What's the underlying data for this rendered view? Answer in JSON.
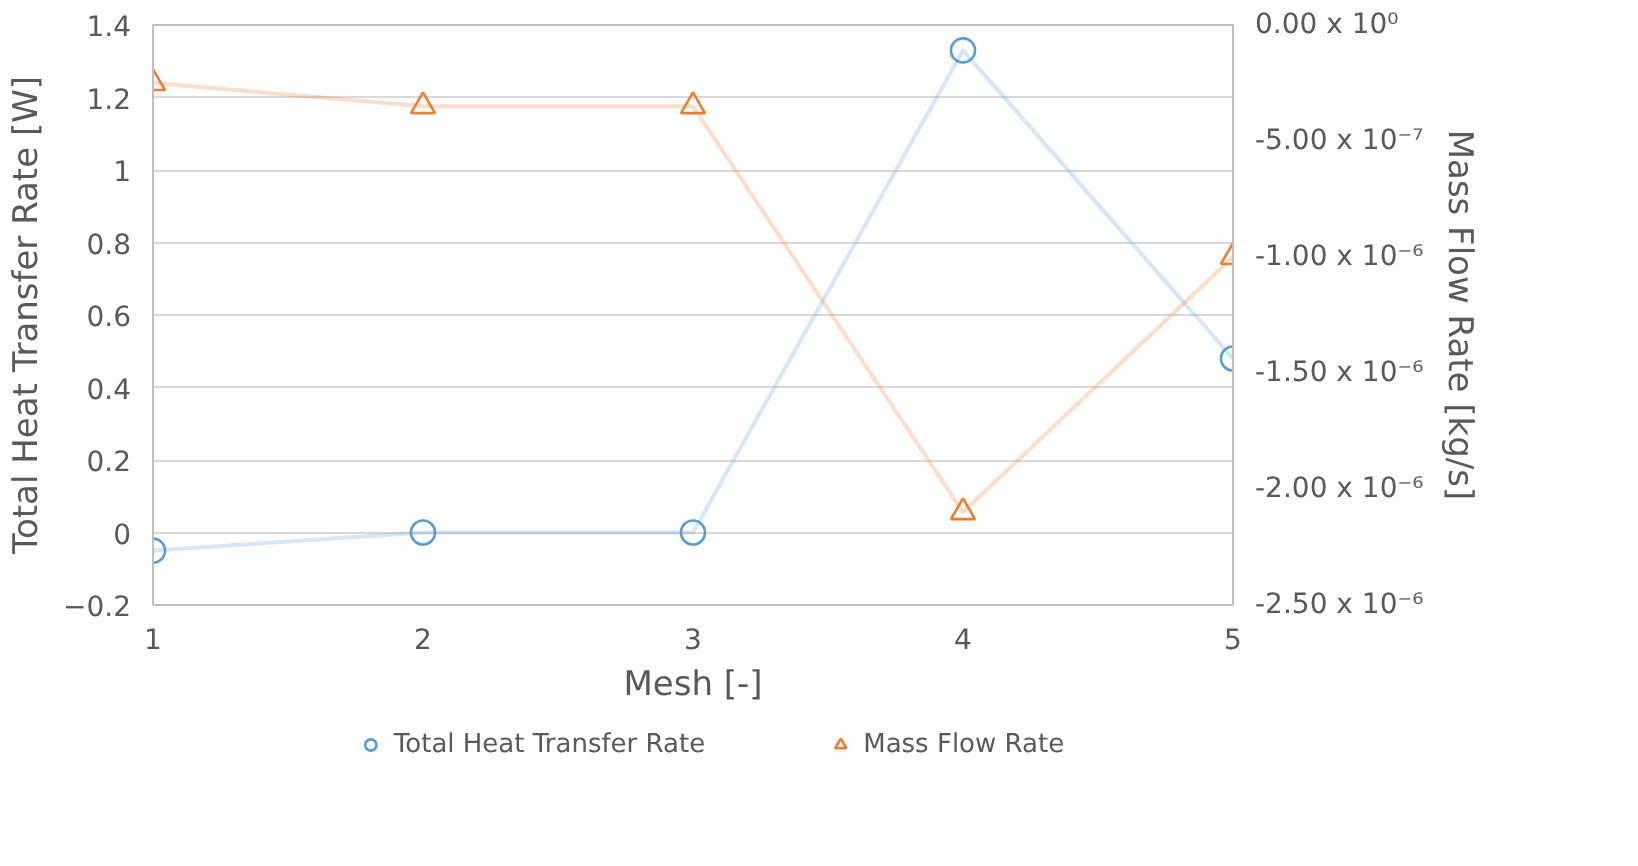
{
  "chart_data": {
    "type": "line",
    "xlabel": "Mesh [-]",
    "ylabel": "Total Heat Transfer Rate [W]",
    "y2label": "Mass Flow Rate [kg/s]",
    "x": [
      1,
      2,
      3,
      4,
      5
    ],
    "series": [
      {
        "name": "Total Heat Transfer Rate",
        "color": "#5b9bd5",
        "marker": "circle",
        "values": [
          -0.05,
          0.0,
          0.0,
          1.33,
          0.48
        ]
      },
      {
        "name": "Mass Flow Rate",
        "color": "#ed7d31",
        "marker": "triangle",
        "axis": "y2",
        "values": [
          -2.5e-07,
          -3.5e-07,
          -3.5e-07,
          -2.1e-06,
          -1e-06
        ]
      }
    ],
    "xlim": [
      1,
      5
    ],
    "xticks": [
      1,
      2,
      3,
      4,
      5
    ],
    "ylim": [
      -0.2,
      1.4
    ],
    "yticks": [
      -0.2,
      0,
      0.2,
      0.4,
      0.6,
      0.8,
      1,
      1.2,
      1.4
    ],
    "y2lim": [
      -2.5e-06,
      0
    ],
    "y2ticks": [
      {
        "value": -2.5e-06,
        "label": "-2.50 x 10⁻⁶"
      },
      {
        "value": -2e-06,
        "label": "-2.00 x 10⁻⁶"
      },
      {
        "value": -1.5e-06,
        "label": "-1.50 x 10⁻⁶"
      },
      {
        "value": -1e-06,
        "label": "-1.00 x 10⁻⁶"
      },
      {
        "value": -5e-07,
        "label": "-5.00 x 10⁻⁷"
      },
      {
        "value": 0,
        "label": "0.00 x 10⁰"
      }
    ],
    "grid": "y",
    "legend": "bottom"
  }
}
